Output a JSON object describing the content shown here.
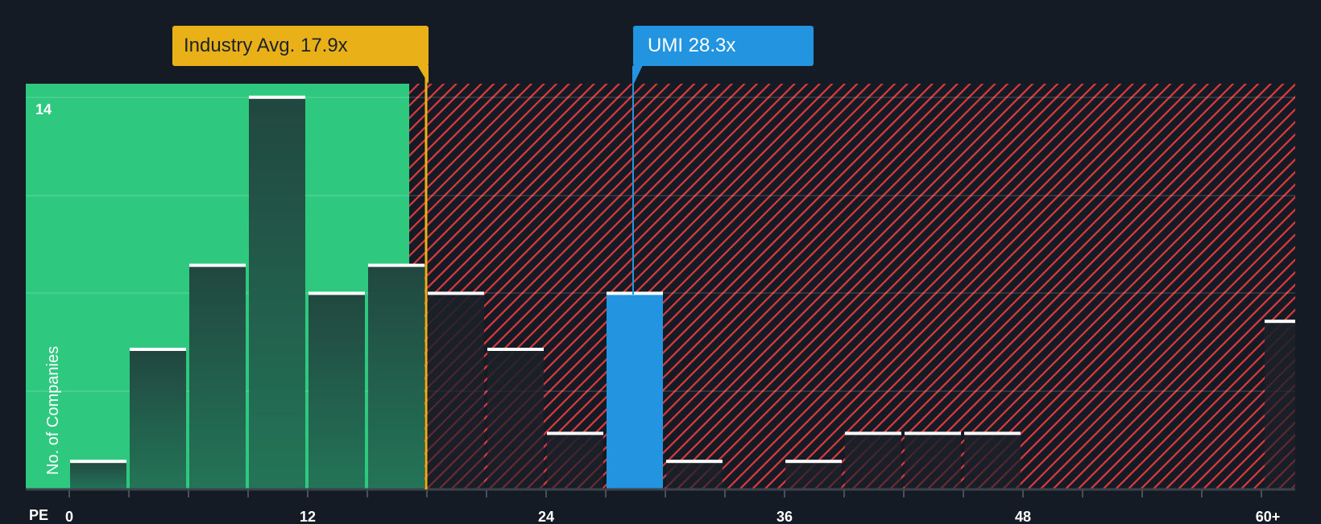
{
  "chart_data": {
    "type": "bar",
    "title": "",
    "xlabel": "PE",
    "ylabel": "No. of Companies",
    "x_tick_labels": [
      "0",
      "12",
      "24",
      "36",
      "48",
      "60+"
    ],
    "y_tick_labels": [
      "14"
    ],
    "ylim": [
      0,
      14
    ],
    "bin_width": 3,
    "bins": [
      {
        "range": "0-3",
        "value": 1
      },
      {
        "range": "3-6",
        "value": 5
      },
      {
        "range": "6-9",
        "value": 8
      },
      {
        "range": "9-12",
        "value": 14
      },
      {
        "range": "12-15",
        "value": 7
      },
      {
        "range": "15-18",
        "value": 8
      },
      {
        "range": "18-21",
        "value": 7
      },
      {
        "range": "21-24",
        "value": 5
      },
      {
        "range": "24-27",
        "value": 2
      },
      {
        "range": "27-30",
        "value": 7,
        "highlight": true
      },
      {
        "range": "30-33",
        "value": 1
      },
      {
        "range": "33-36",
        "value": 0
      },
      {
        "range": "36-39",
        "value": 1
      },
      {
        "range": "39-42",
        "value": 2
      },
      {
        "range": "42-45",
        "value": 2
      },
      {
        "range": "45-48",
        "value": 2
      },
      {
        "range": "60+",
        "value": 6
      }
    ],
    "annotations": [
      {
        "label": "Industry Avg. 17.9x",
        "x": 17.9,
        "color": "#e9b017"
      },
      {
        "label": "UMI 28.3x",
        "x": 28.3,
        "color": "#2394e0"
      }
    ],
    "grid": true,
    "legend": "none"
  },
  "callouts": {
    "industry": "Industry Avg. 17.9x",
    "company": "UMI 28.3x"
  },
  "axis": {
    "x_title": "PE",
    "y_title": "No. of Companies",
    "y_max_label": "14"
  },
  "colors": {
    "background": "#151b24",
    "undervalued_fill": "#2ec97f",
    "overvalued_hatch": "#e0393e",
    "bar_top": "#21473f",
    "bar_bottom": "#237558",
    "highlight_bar": "#2394e0",
    "industry_line": "#e9b017"
  }
}
